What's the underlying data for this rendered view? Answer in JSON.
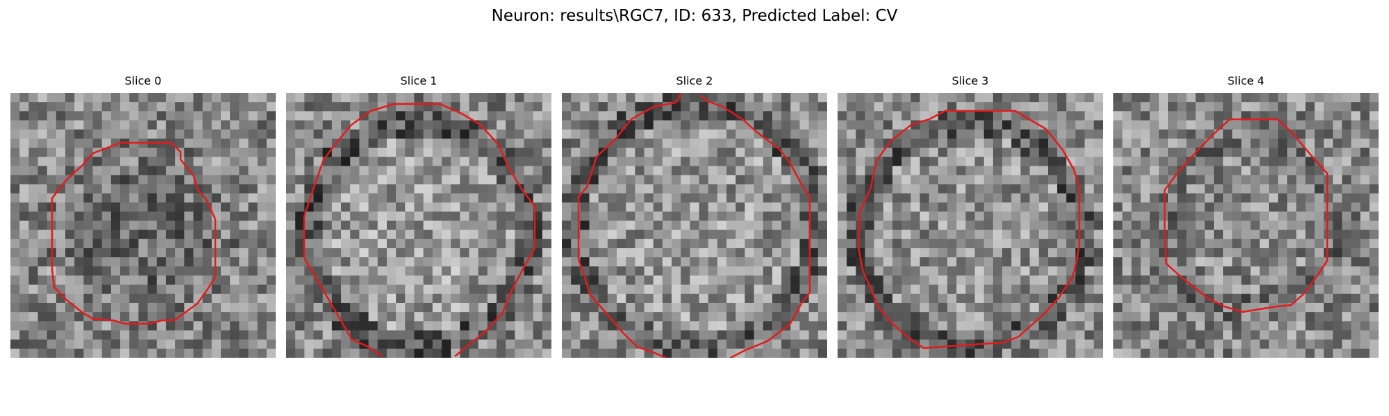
{
  "figure": {
    "title": "Neuron: results\\RGC7, ID: 633, Predicted Label: CV"
  },
  "panels": [
    {
      "title": "Slice 0",
      "contour_color": "#e41a1c",
      "grayscale_image": "image-0"
    },
    {
      "title": "Slice 1",
      "contour_color": "#e41a1c",
      "grayscale_image": "image-1"
    },
    {
      "title": "Slice 2",
      "contour_color": "#e41a1c",
      "grayscale_image": "image-2"
    },
    {
      "title": "Slice 3",
      "contour_color": "#e41a1c",
      "grayscale_image": "image-3"
    },
    {
      "title": "Slice 4",
      "contour_color": "#e41a1c",
      "grayscale_image": "image-4"
    }
  ]
}
